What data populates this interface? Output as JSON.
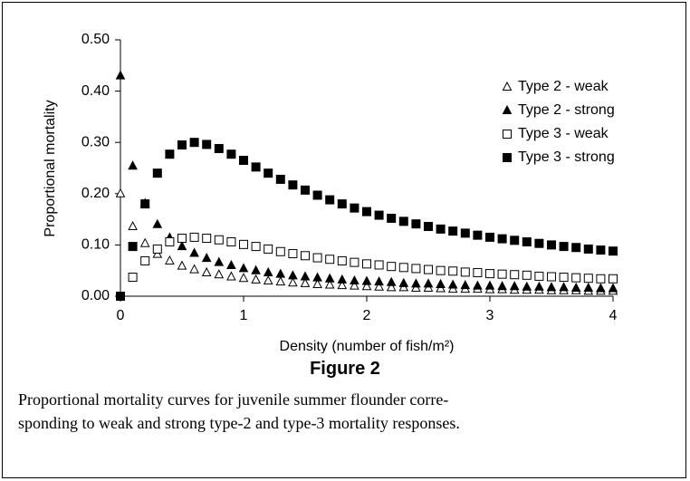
{
  "chart_data": {
    "type": "scatter",
    "x_label": "Density (number of fish/m²)",
    "y_label": "Proportional mortality",
    "figure_label": "Figure 2",
    "caption": [
      "Proportional mortality curves for juvenile summer flounder corre-",
      "sponding to weak and strong type-2 and type-3 mortality responses."
    ],
    "xlim": [
      0,
      4
    ],
    "xticks": [
      0,
      1,
      2,
      3,
      4
    ],
    "ylim": [
      0,
      0.5
    ],
    "yticks": [
      {
        "value": 0,
        "label": "0.00"
      },
      {
        "value": 0.1,
        "label": "0.10"
      },
      {
        "value": 0.2,
        "label": "0.20"
      },
      {
        "value": 0.3,
        "label": "0.30"
      },
      {
        "value": 0.4,
        "label": "0.40"
      },
      {
        "value": 0.5,
        "label": "0.50"
      }
    ],
    "legend": "upper right",
    "x": [
      0,
      0.1,
      0.2,
      0.3,
      0.4,
      0.5,
      0.6,
      0.7,
      0.8,
      0.9,
      1,
      1.1,
      1.2,
      1.3,
      1.4,
      1.5,
      1.6,
      1.7,
      1.8,
      1.9,
      2,
      2.1,
      2.2,
      2.3,
      2.4,
      2.5,
      2.6,
      2.7,
      2.8,
      2.9,
      3,
      3.1,
      3.2,
      3.3,
      3.4,
      3.5,
      3.6,
      3.7,
      3.8,
      3.9,
      4
    ],
    "series": [
      {
        "name": "Type 2 - weak",
        "marker": "triangle",
        "filled": false,
        "color": "#000000",
        "values": [
          0.2,
          0.136,
          0.103,
          0.082,
          0.069,
          0.059,
          0.052,
          0.046,
          0.042,
          0.038,
          0.035,
          0.032,
          0.03,
          0.028,
          0.026,
          0.025,
          0.023,
          0.022,
          0.021,
          0.02,
          0.019,
          0.018,
          0.017,
          0.017,
          0.016,
          0.016,
          0.015,
          0.014,
          0.014,
          0.014,
          0.013,
          0.013,
          0.012,
          0.012,
          0.012,
          0.011,
          0.011,
          0.011,
          0.01,
          0.01,
          0.01
        ]
      },
      {
        "name": "Type 2 - strong",
        "marker": "triangle",
        "filled": true,
        "color": "#000000",
        "values": [
          0.43,
          0.254,
          0.181,
          0.14,
          0.114,
          0.097,
          0.084,
          0.074,
          0.066,
          0.06,
          0.054,
          0.05,
          0.046,
          0.043,
          0.04,
          0.038,
          0.036,
          0.034,
          0.032,
          0.03,
          0.029,
          0.028,
          0.027,
          0.025,
          0.024,
          0.024,
          0.023,
          0.022,
          0.021,
          0.02,
          0.02,
          0.019,
          0.019,
          0.018,
          0.018,
          0.017,
          0.017,
          0.016,
          0.016,
          0.015,
          0.015
        ]
      },
      {
        "name": "Type 3 - weak",
        "marker": "square",
        "filled": false,
        "color": "#000000",
        "values": [
          0,
          0.037,
          0.069,
          0.092,
          0.106,
          0.113,
          0.115,
          0.113,
          0.11,
          0.106,
          0.101,
          0.097,
          0.092,
          0.087,
          0.083,
          0.079,
          0.075,
          0.072,
          0.069,
          0.066,
          0.063,
          0.061,
          0.058,
          0.056,
          0.054,
          0.052,
          0.05,
          0.049,
          0.047,
          0.046,
          0.044,
          0.043,
          0.042,
          0.041,
          0.039,
          0.038,
          0.037,
          0.036,
          0.035,
          0.034,
          0.034
        ]
      },
      {
        "name": "Type 3 - strong",
        "marker": "square",
        "filled": true,
        "color": "#000000",
        "values": [
          0,
          0.097,
          0.18,
          0.24,
          0.277,
          0.295,
          0.3,
          0.296,
          0.288,
          0.277,
          0.265,
          0.252,
          0.24,
          0.228,
          0.217,
          0.207,
          0.197,
          0.188,
          0.18,
          0.172,
          0.165,
          0.158,
          0.152,
          0.146,
          0.141,
          0.136,
          0.131,
          0.127,
          0.123,
          0.119,
          0.115,
          0.112,
          0.109,
          0.106,
          0.103,
          0.1,
          0.097,
          0.095,
          0.092,
          0.09,
          0.088
        ]
      }
    ]
  }
}
